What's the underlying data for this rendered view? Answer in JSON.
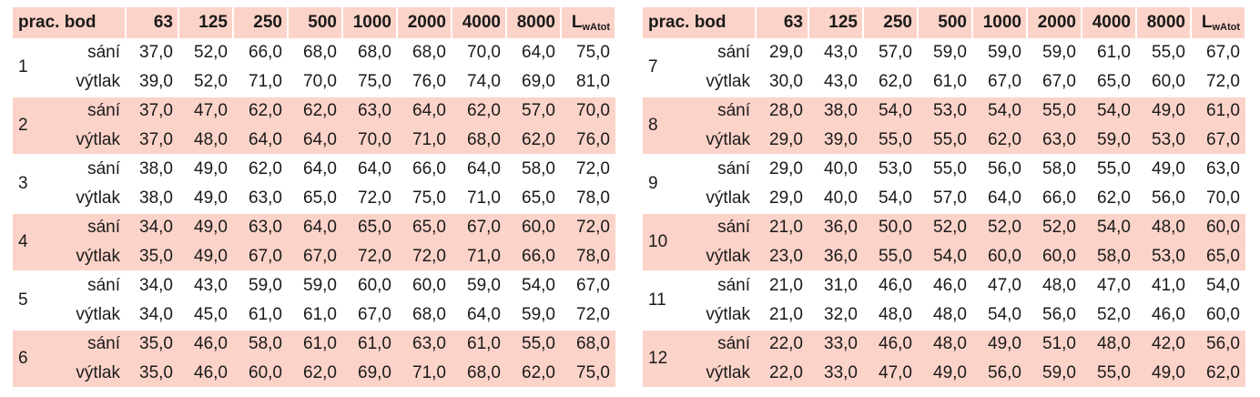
{
  "tables": [
    {
      "header": {
        "label": "prac. bod",
        "bands": [
          "63",
          "125",
          "250",
          "500",
          "1000",
          "2000",
          "4000",
          "8000"
        ],
        "total": {
          "base": "L",
          "sub": "wAtot"
        }
      },
      "groups": [
        {
          "label": "1",
          "rows": [
            {
              "name": "sání",
              "values": [
                "37,0",
                "52,0",
                "66,0",
                "68,0",
                "68,0",
                "68,0",
                "70,0",
                "64,0",
                "75,0"
              ]
            },
            {
              "name": "výtlak",
              "values": [
                "39,0",
                "52,0",
                "71,0",
                "70,0",
                "75,0",
                "76,0",
                "74,0",
                "69,0",
                "81,0"
              ]
            }
          ]
        },
        {
          "label": "2",
          "rows": [
            {
              "name": "sání",
              "values": [
                "37,0",
                "47,0",
                "62,0",
                "62,0",
                "63,0",
                "64,0",
                "62,0",
                "57,0",
                "70,0"
              ]
            },
            {
              "name": "výtlak",
              "values": [
                "37,0",
                "48,0",
                "64,0",
                "64,0",
                "70,0",
                "71,0",
                "68,0",
                "62,0",
                "76,0"
              ]
            }
          ]
        },
        {
          "label": "3",
          "rows": [
            {
              "name": "sání",
              "values": [
                "38,0",
                "49,0",
                "62,0",
                "64,0",
                "64,0",
                "66,0",
                "64,0",
                "58,0",
                "72,0"
              ]
            },
            {
              "name": "výtlak",
              "values": [
                "38,0",
                "49,0",
                "63,0",
                "65,0",
                "72,0",
                "75,0",
                "71,0",
                "65,0",
                "78,0"
              ]
            }
          ]
        },
        {
          "label": "4",
          "rows": [
            {
              "name": "sání",
              "values": [
                "34,0",
                "49,0",
                "63,0",
                "64,0",
                "65,0",
                "65,0",
                "67,0",
                "60,0",
                "72,0"
              ]
            },
            {
              "name": "výtlak",
              "values": [
                "35,0",
                "49,0",
                "67,0",
                "67,0",
                "72,0",
                "72,0",
                "71,0",
                "66,0",
                "78,0"
              ]
            }
          ]
        },
        {
          "label": "5",
          "rows": [
            {
              "name": "sání",
              "values": [
                "34,0",
                "43,0",
                "59,0",
                "59,0",
                "60,0",
                "60,0",
                "59,0",
                "54,0",
                "67,0"
              ]
            },
            {
              "name": "výtlak",
              "values": [
                "34,0",
                "45,0",
                "61,0",
                "61,0",
                "67,0",
                "68,0",
                "64,0",
                "59,0",
                "72,0"
              ]
            }
          ]
        },
        {
          "label": "6",
          "rows": [
            {
              "name": "sání",
              "values": [
                "35,0",
                "46,0",
                "58,0",
                "61,0",
                "61,0",
                "63,0",
                "61,0",
                "55,0",
                "68,0"
              ]
            },
            {
              "name": "výtlak",
              "values": [
                "35,0",
                "46,0",
                "60,0",
                "62,0",
                "69,0",
                "71,0",
                "68,0",
                "62,0",
                "75,0"
              ]
            }
          ]
        }
      ]
    },
    {
      "header": {
        "label": "prac. bod",
        "bands": [
          "63",
          "125",
          "250",
          "500",
          "1000",
          "2000",
          "4000",
          "8000"
        ],
        "total": {
          "base": "L",
          "sub": "wAtot"
        }
      },
      "groups": [
        {
          "label": "7",
          "rows": [
            {
              "name": "sání",
              "values": [
                "29,0",
                "43,0",
                "57,0",
                "59,0",
                "59,0",
                "59,0",
                "61,0",
                "55,0",
                "67,0"
              ]
            },
            {
              "name": "výtlak",
              "values": [
                "30,0",
                "43,0",
                "62,0",
                "61,0",
                "67,0",
                "67,0",
                "65,0",
                "60,0",
                "72,0"
              ]
            }
          ]
        },
        {
          "label": "8",
          "rows": [
            {
              "name": "sání",
              "values": [
                "28,0",
                "38,0",
                "54,0",
                "53,0",
                "54,0",
                "55,0",
                "54,0",
                "49,0",
                "61,0"
              ]
            },
            {
              "name": "výtlak",
              "values": [
                "29,0",
                "39,0",
                "55,0",
                "55,0",
                "62,0",
                "63,0",
                "59,0",
                "53,0",
                "67,0"
              ]
            }
          ]
        },
        {
          "label": "9",
          "rows": [
            {
              "name": "sání",
              "values": [
                "29,0",
                "40,0",
                "53,0",
                "55,0",
                "56,0",
                "58,0",
                "55,0",
                "49,0",
                "63,0"
              ]
            },
            {
              "name": "výtlak",
              "values": [
                "29,0",
                "40,0",
                "54,0",
                "57,0",
                "64,0",
                "66,0",
                "62,0",
                "56,0",
                "70,0"
              ]
            }
          ]
        },
        {
          "label": "10",
          "rows": [
            {
              "name": "sání",
              "values": [
                "21,0",
                "36,0",
                "50,0",
                "52,0",
                "52,0",
                "52,0",
                "54,0",
                "48,0",
                "60,0"
              ]
            },
            {
              "name": "výtlak",
              "values": [
                "23,0",
                "36,0",
                "55,0",
                "54,0",
                "60,0",
                "60,0",
                "58,0",
                "53,0",
                "65,0"
              ]
            }
          ]
        },
        {
          "label": "11",
          "rows": [
            {
              "name": "sání",
              "values": [
                "21,0",
                "31,0",
                "46,0",
                "46,0",
                "47,0",
                "48,0",
                "47,0",
                "41,0",
                "54,0"
              ]
            },
            {
              "name": "výtlak",
              "values": [
                "21,0",
                "32,0",
                "48,0",
                "48,0",
                "54,0",
                "56,0",
                "52,0",
                "46,0",
                "60,0"
              ]
            }
          ]
        },
        {
          "label": "12",
          "rows": [
            {
              "name": "sání",
              "values": [
                "22,0",
                "33,0",
                "46,0",
                "48,0",
                "49,0",
                "51,0",
                "48,0",
                "42,0",
                "56,0"
              ]
            },
            {
              "name": "výtlak",
              "values": [
                "22,0",
                "33,0",
                "47,0",
                "49,0",
                "56,0",
                "59,0",
                "55,0",
                "49,0",
                "62,0"
              ]
            }
          ]
        }
      ]
    }
  ]
}
